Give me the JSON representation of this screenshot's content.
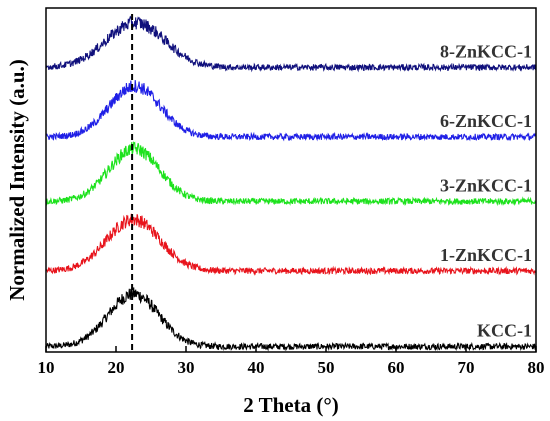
{
  "chart_data": {
    "type": "line",
    "xlabel": "2 Theta (°)",
    "ylabel": "Normalized Intensity (a.u.)",
    "xlim": [
      10,
      80
    ],
    "xticks": [
      10,
      20,
      30,
      40,
      50,
      60,
      70,
      80
    ],
    "yticks_shown": false,
    "reference_line": {
      "x": 22.3,
      "style": "dashed",
      "color": "#000000"
    },
    "series": [
      {
        "name": "KCC-1",
        "color": "#000000",
        "offset": 0,
        "baseline": 0.04,
        "peak_x": 22.5,
        "peak_height": 0.85,
        "peak_width": 3.6
      },
      {
        "name": "1-ZnKCC-1",
        "color": "#e8141c",
        "offset": 1,
        "baseline": 0.18,
        "peak_x": 22.5,
        "peak_height": 0.83,
        "peak_width": 3.8
      },
      {
        "name": "3-ZnKCC-1",
        "color": "#1de21d",
        "offset": 2,
        "baseline": 0.22,
        "peak_x": 22.6,
        "peak_height": 0.85,
        "peak_width": 3.6
      },
      {
        "name": "6-ZnKCC-1",
        "color": "#1f1fe6",
        "offset": 3,
        "baseline": 0.18,
        "peak_x": 22.7,
        "peak_height": 0.82,
        "peak_width": 3.6
      },
      {
        "name": "8-ZnKCC-1",
        "color": "#10107c",
        "offset": 4,
        "baseline": 0.22,
        "peak_x": 22.8,
        "peak_height": 0.72,
        "peak_width": 4.2
      }
    ]
  }
}
